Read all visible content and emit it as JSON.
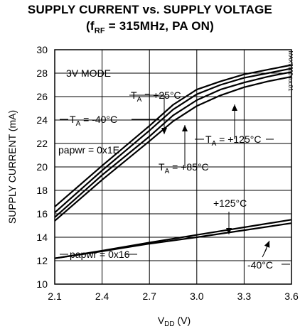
{
  "chart_data": {
    "type": "line",
    "title_line1": "SUPPLY CURRENT vs. SUPPLY VOLTAGE",
    "title_line2_prefix": "(f",
    "title_line2_sub": "RF",
    "title_line2_suffix": " = 315MHz, PA ON)",
    "xlabel_main": "V",
    "xlabel_sub": "DD",
    "xlabel_unit": " (V)",
    "ylabel": "SUPPLY CURRENT (mA)",
    "xlim": [
      2.1,
      3.6
    ],
    "ylim": [
      10,
      30
    ],
    "xticks": [
      "2.1",
      "2.4",
      "2.7",
      "3.0",
      "3.3",
      "3.6"
    ],
    "yticks": [
      "10",
      "12",
      "14",
      "16",
      "18",
      "20",
      "22",
      "24",
      "26",
      "28",
      "30"
    ],
    "grid": true,
    "watermark": "MAX7060 toc01",
    "series": [
      {
        "group": "papwr = 0x1E",
        "temp": "-40°C",
        "x": [
          2.1,
          2.4,
          2.7,
          2.85,
          3.0,
          3.15,
          3.3,
          3.45,
          3.6
        ],
        "y": [
          16.6,
          20.1,
          23.5,
          25.3,
          26.6,
          27.3,
          27.9,
          28.3,
          28.7
        ]
      },
      {
        "group": "papwr = 0x1E",
        "temp": "+25°C",
        "x": [
          2.1,
          2.4,
          2.7,
          2.85,
          3.0,
          3.15,
          3.3,
          3.45,
          3.6
        ],
        "y": [
          16.1,
          19.7,
          23.1,
          24.9,
          26.2,
          27.0,
          27.6,
          28.0,
          28.4
        ]
      },
      {
        "group": "papwr = 0x1E",
        "temp": "+85°C",
        "x": [
          2.1,
          2.4,
          2.7,
          2.85,
          3.0,
          3.15,
          3.3,
          3.45,
          3.6
        ],
        "y": [
          15.7,
          19.3,
          22.6,
          24.4,
          25.7,
          26.6,
          27.2,
          27.7,
          28.1
        ]
      },
      {
        "group": "papwr = 0x1E",
        "temp": "+125°C",
        "x": [
          2.1,
          2.4,
          2.7,
          2.85,
          3.0,
          3.15,
          3.3,
          3.45,
          3.6
        ],
        "y": [
          15.4,
          18.9,
          22.2,
          23.9,
          25.2,
          26.1,
          26.8,
          27.3,
          27.7
        ]
      },
      {
        "group": "papwr = 0x16",
        "temp": "+125°C",
        "x": [
          2.1,
          2.4,
          2.7,
          3.0,
          3.3,
          3.6
        ],
        "y": [
          12.2,
          12.85,
          13.55,
          14.2,
          14.85,
          15.5
        ]
      },
      {
        "group": "papwr = 0x16",
        "temp": "-40°C",
        "x": [
          2.1,
          2.4,
          2.7,
          3.0,
          3.3,
          3.6
        ],
        "y": [
          12.2,
          12.8,
          13.45,
          14.0,
          14.6,
          15.2
        ]
      }
    ],
    "annotations": {
      "mode": "3V MODE",
      "ta_prefix": "T",
      "ta_sub": "A",
      "ta25": " = +25°C",
      "ta_m40": " = -40°C",
      "ta85": " = +85°C",
      "ta125": " = +125°C",
      "papwr_hi": "papwr = 0x1E",
      "papwr_lo": "papwr = 0x16",
      "lo125": "+125°C",
      "lo_m40": "-40°C"
    }
  }
}
